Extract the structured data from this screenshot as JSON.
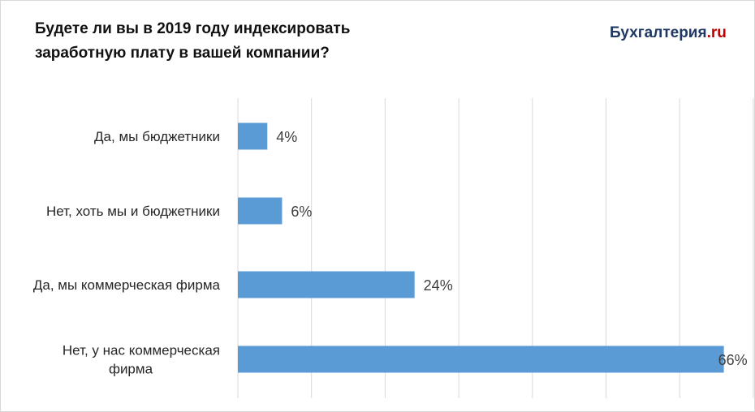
{
  "title_lines": [
    "Будете ли вы в 2019 году  индексировать",
    "заработную плату  в вашей компании?"
  ],
  "brand": {
    "main": "Бухгалтерия",
    "dot": ".",
    "tld": "ru"
  },
  "colors": {
    "bar": "#5b9bd5",
    "grid": "#d9d9d9",
    "brand_main": "#1f3864",
    "brand_accent": "#c00000"
  },
  "chart_data": {
    "type": "bar",
    "orientation": "horizontal",
    "title": "Будете ли вы в 2019 году  индексировать заработную плату  в вашей компании?",
    "categories": [
      "Да, мы бюджетники",
      "Нет, хоть мы и бюджетники",
      "Да, мы коммерческая фирма",
      "Нет, у нас коммерческая фирма"
    ],
    "category_lines": [
      [
        "Да, мы бюджетники"
      ],
      [
        "Нет, хоть мы и бюджетники"
      ],
      [
        "Да, мы коммерческая фирма"
      ],
      [
        "Нет, у нас коммерческая",
        "фирма"
      ]
    ],
    "values": [
      4,
      6,
      24,
      66
    ],
    "data_labels": [
      "4%",
      "6%",
      "24%",
      "66%"
    ],
    "unit": "%",
    "xlim": [
      0,
      70
    ],
    "grid_step": 10,
    "grid": true,
    "legend": "none"
  }
}
